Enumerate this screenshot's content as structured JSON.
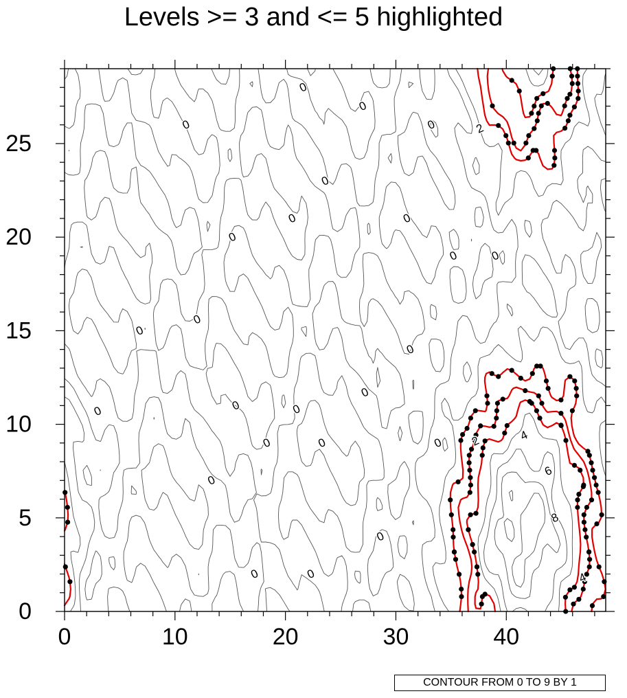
{
  "chart_data": {
    "type": "contour",
    "title": "Levels >= 3 and <= 5 highlighted",
    "info_label": "CONTOUR FROM 0 TO 9 BY 1",
    "xlabel": "",
    "ylabel": "",
    "xlim": [
      0,
      49
    ],
    "ylim": [
      0,
      29
    ],
    "x_ticks": [
      0,
      10,
      20,
      30,
      40
    ],
    "y_ticks": [
      0,
      5,
      10,
      15,
      20,
      25
    ],
    "levels": {
      "min": 0,
      "max": 9,
      "step": 1
    },
    "highlight_levels": [
      3,
      4,
      5
    ],
    "highlight_color": "#e00000",
    "line_color": "#555555",
    "marker_color": "#000000",
    "contour_labels": [
      {
        "text": "0",
        "x": 3,
        "y": 10.7
      },
      {
        "text": "0",
        "x": 6.8,
        "y": 15
      },
      {
        "text": "0",
        "x": 11,
        "y": 26
      },
      {
        "text": "0",
        "x": 12,
        "y": 15.6
      },
      {
        "text": "0",
        "x": 13.3,
        "y": 7
      },
      {
        "text": "0",
        "x": 15.5,
        "y": 11
      },
      {
        "text": "0",
        "x": 15.2,
        "y": 20
      },
      {
        "text": "0",
        "x": 17.2,
        "y": 2
      },
      {
        "text": "0",
        "x": 18.3,
        "y": 9
      },
      {
        "text": "0",
        "x": 20.6,
        "y": 21
      },
      {
        "text": "0",
        "x": 21,
        "y": 10.8
      },
      {
        "text": "0",
        "x": 21.6,
        "y": 28
      },
      {
        "text": "0",
        "x": 22.3,
        "y": 2
      },
      {
        "text": "0",
        "x": 23.3,
        "y": 9
      },
      {
        "text": "0",
        "x": 23.6,
        "y": 23
      },
      {
        "text": "0",
        "x": 27,
        "y": 27
      },
      {
        "text": "0",
        "x": 27.2,
        "y": 11.7
      },
      {
        "text": "0",
        "x": 28.6,
        "y": 4
      },
      {
        "text": "0",
        "x": 31.3,
        "y": 14
      },
      {
        "text": "0",
        "x": 33.2,
        "y": 26
      },
      {
        "text": "0",
        "x": 33.8,
        "y": 9
      },
      {
        "text": "0",
        "x": 35.2,
        "y": 19
      },
      {
        "text": "0",
        "x": 39,
        "y": 19
      },
      {
        "text": "0",
        "x": 31,
        "y": 21
      },
      {
        "text": "2",
        "x": 37.6,
        "y": 25.8
      },
      {
        "text": "2",
        "x": 37.2,
        "y": 9.1
      },
      {
        "text": "4",
        "x": 41.6,
        "y": 9.4
      },
      {
        "text": "6",
        "x": 43.8,
        "y": 7.5
      },
      {
        "text": "8",
        "x": 44.4,
        "y": 5
      },
      {
        "text": "4",
        "x": 46.9,
        "y": 1.8
      }
    ]
  }
}
